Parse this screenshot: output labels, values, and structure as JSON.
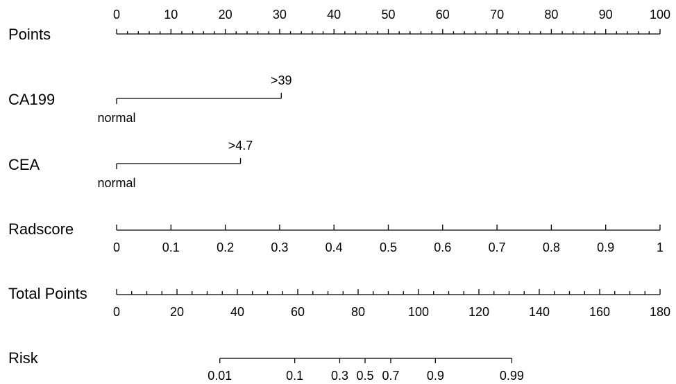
{
  "chart_data": {
    "type": "nomogram",
    "points_axis": {
      "label": "Points",
      "range": [
        0,
        100
      ],
      "tick_labels": [
        "0",
        "10",
        "20",
        "30",
        "40",
        "50",
        "60",
        "70",
        "80",
        "90",
        "100"
      ],
      "tick_values": [
        0,
        10,
        20,
        30,
        40,
        50,
        60,
        70,
        80,
        90,
        100
      ],
      "minor_step": 2
    },
    "variables": [
      {
        "label": "CA199",
        "levels": [
          {
            "name": "normal",
            "points": 0
          },
          {
            "name": ">39",
            "points": 30.3
          }
        ]
      },
      {
        "label": "CEA",
        "levels": [
          {
            "name": "normal",
            "points": 0
          },
          {
            "name": ">4.7",
            "points": 22.8
          }
        ]
      },
      {
        "label": "Radscore",
        "range": [
          0,
          1
        ],
        "tick_labels": [
          "0",
          "0.1",
          "0.2",
          "0.3",
          "0.4",
          "0.5",
          "0.6",
          "0.7",
          "0.8",
          "0.9",
          "1"
        ],
        "tick_values": [
          0,
          0.1,
          0.2,
          0.3,
          0.4,
          0.5,
          0.6,
          0.7,
          0.8,
          0.9,
          1
        ],
        "points_per_unit": 100
      }
    ],
    "total_points_axis": {
      "label": "Total Points",
      "range": [
        0,
        180
      ],
      "tick_labels": [
        "0",
        "20",
        "40",
        "60",
        "80",
        "100",
        "120",
        "140",
        "160",
        "180"
      ],
      "tick_values": [
        0,
        20,
        40,
        60,
        80,
        100,
        120,
        140,
        160,
        180
      ],
      "minor_step": 5
    },
    "risk_axis": {
      "label": "Risk",
      "tick_labels": [
        "0.01",
        "0.1",
        "0.3",
        "0.5",
        "0.7",
        "0.9",
        "0.99"
      ],
      "tick_values": [
        0.01,
        0.1,
        0.3,
        0.5,
        0.7,
        0.9,
        0.99
      ],
      "total_points_at_ticks": [
        34.2,
        59.0,
        73.9,
        82.3,
        90.8,
        105.6,
        130.9
      ]
    }
  }
}
